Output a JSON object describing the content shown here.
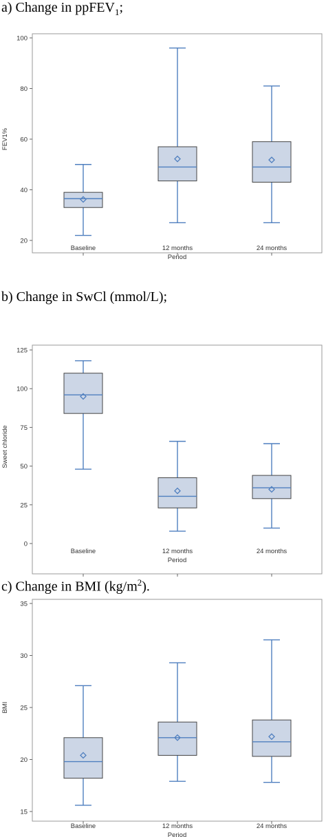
{
  "panels": [
    {
      "heading_prefix": "a)   Change in ppFEV",
      "heading_sub": "1",
      "heading_suffix": ";"
    },
    {
      "heading_prefix": "b) Change in SwCl (mmol/L);",
      "heading_sub": "",
      "heading_suffix": ""
    },
    {
      "heading_prefix": "c) Change in BMI (kg/m",
      "heading_sup": "2",
      "heading_suffix": ")."
    }
  ],
  "chart_data": [
    {
      "type": "boxplot",
      "categories": [
        "Baseline",
        "12 months",
        "24 months"
      ],
      "xlabel": "Period",
      "ylabel": "FEV1%",
      "ylim": [
        20,
        100
      ],
      "yticks": [
        20,
        40,
        60,
        80,
        100
      ],
      "grid": false,
      "boxes": [
        {
          "min": 22,
          "q1": 33,
          "median": 36.5,
          "q3": 39,
          "max": 50,
          "mean": 36.2
        },
        {
          "min": 27,
          "q1": 43.5,
          "median": 49,
          "q3": 57,
          "max": 96,
          "mean": 52.2
        },
        {
          "min": 27,
          "q1": 43,
          "median": 49,
          "q3": 59,
          "max": 81,
          "mean": 51.8
        }
      ]
    },
    {
      "type": "boxplot",
      "categories": [
        "Baseline",
        "12 months",
        "24 months"
      ],
      "xlabel": "Period",
      "ylabel": "Sweet chloride",
      "ylim": [
        0,
        125
      ],
      "yticks": [
        0,
        25,
        50,
        75,
        100,
        125
      ],
      "grid": false,
      "boxes": [
        {
          "min": 48,
          "q1": 84,
          "median": 96,
          "q3": 110,
          "max": 118,
          "mean": 95
        },
        {
          "min": 8,
          "q1": 23,
          "median": 30.5,
          "q3": 42.5,
          "max": 66,
          "mean": 34
        },
        {
          "min": 10,
          "q1": 29,
          "median": 36,
          "q3": 44,
          "max": 64.5,
          "mean": 35
        }
      ]
    },
    {
      "type": "boxplot",
      "categories": [
        "Baseline",
        "12 months",
        "24 months"
      ],
      "xlabel": "Period",
      "ylabel": "BMI",
      "ylim": [
        15,
        35
      ],
      "yticks": [
        15,
        20,
        25,
        30,
        35
      ],
      "grid": false,
      "boxes": [
        {
          "min": 15.6,
          "q1": 18.2,
          "median": 19.8,
          "q3": 22.1,
          "max": 27.1,
          "mean": 20.4
        },
        {
          "min": 17.9,
          "q1": 20.4,
          "median": 22.1,
          "q3": 23.6,
          "max": 29.3,
          "mean": 22.1
        },
        {
          "min": 17.8,
          "q1": 20.3,
          "median": 21.7,
          "q3": 23.8,
          "max": 31.5,
          "mean": 22.2
        }
      ]
    }
  ],
  "colors": {
    "box_fill": "#ccd6e6",
    "box_stroke": "#444444",
    "whisker": "#4f7fbf",
    "frame": "#999999"
  }
}
